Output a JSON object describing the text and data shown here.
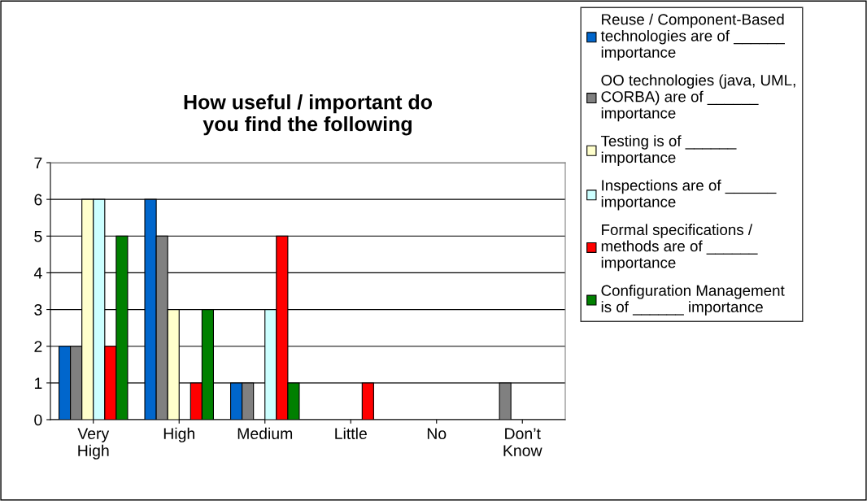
{
  "chart_data": {
    "type": "bar",
    "title": "How useful / important do\nyou find the following",
    "categories": [
      "Very\nHigh",
      "High",
      "Medium",
      "Little",
      "No",
      "Don’t\nKnow"
    ],
    "series": [
      {
        "name": "Reuse / Component-Based\ntechnologies are of ______\nimportance",
        "color": "#0066cc",
        "values": [
          2,
          6,
          1,
          0,
          0,
          0
        ]
      },
      {
        "name": "OO technologies (java, UML,\nCORBA) are of ______\nimportance",
        "color": "#808080",
        "values": [
          2,
          5,
          1,
          0,
          0,
          1
        ]
      },
      {
        "name": "Testing is of ______\nimportance",
        "color": "#ffffcc",
        "values": [
          6,
          3,
          0,
          0,
          0,
          0
        ]
      },
      {
        "name": "Inspections are of ______\nimportance",
        "color": "#ccffff",
        "values": [
          6,
          0,
          3,
          0,
          0,
          0
        ]
      },
      {
        "name": "Formal specifications /\nmethods are of ______\nimportance",
        "color": "#ff0000",
        "values": [
          2,
          1,
          5,
          1,
          0,
          0
        ]
      },
      {
        "name": "Configuration Management\nis of ______ importance",
        "color": "#008000",
        "values": [
          5,
          3,
          1,
          0,
          0,
          0
        ]
      }
    ],
    "ylim": [
      0,
      7
    ],
    "yticks": [
      0,
      1,
      2,
      3,
      4,
      5,
      6,
      7
    ],
    "grid": "y",
    "legend": "right"
  }
}
